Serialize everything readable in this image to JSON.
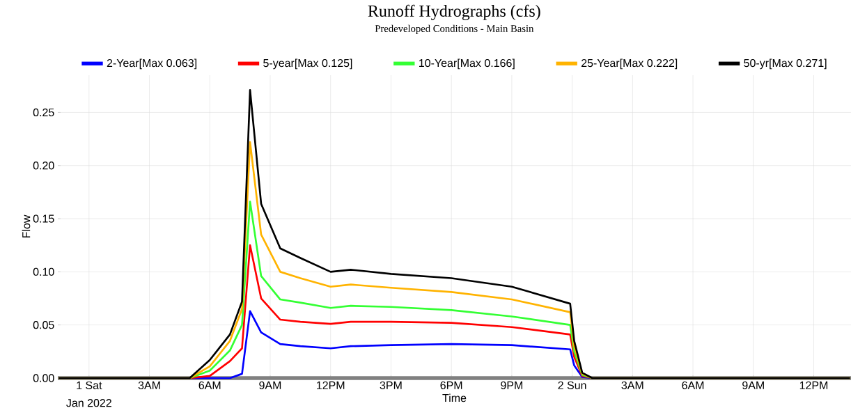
{
  "chart_data": {
    "type": "line",
    "title": "Runoff Hydrographs (cfs)",
    "subtitle": "Predeveloped Conditions - Main Basin",
    "xlabel": "Time",
    "ylabel": "Flow",
    "annotations": [
      "Jan 2022"
    ],
    "x": [
      "2021-12-31T22:30",
      "2022-01-01T05:00",
      "2022-01-01T06:00",
      "2022-01-01T07:00",
      "2022-01-01T07:36",
      "2022-01-01T08:00",
      "2022-01-01T08:33",
      "2022-01-01T09:30",
      "2022-01-01T10:30",
      "2022-01-01T12:00",
      "2022-01-01T13:00",
      "2022-01-01T15:00",
      "2022-01-01T18:00",
      "2022-01-01T21:00",
      "2022-01-01T23:54",
      "2022-01-02T00:06",
      "2022-01-02T00:30",
      "2022-01-02T01:00",
      "2022-01-02T13:48"
    ],
    "series": [
      {
        "name": "2-Year[Max 0.063]",
        "color": "#0000ff",
        "values": [
          0,
          0,
          0,
          0,
          0.004,
          0.063,
          0.043,
          0.032,
          0.03,
          0.028,
          0.03,
          0.031,
          0.032,
          0.031,
          0.027,
          0.012,
          0.001,
          0,
          0
        ]
      },
      {
        "name": "5-year[Max 0.125]",
        "color": "#ff0000",
        "values": [
          0,
          0,
          0.002,
          0.016,
          0.028,
          0.125,
          0.075,
          0.055,
          0.053,
          0.051,
          0.053,
          0.053,
          0.052,
          0.048,
          0.041,
          0.02,
          0.002,
          0,
          0
        ]
      },
      {
        "name": "10-Year[Max 0.166]",
        "color": "#33ff33",
        "values": [
          0,
          0,
          0.007,
          0.026,
          0.05,
          0.166,
          0.096,
          0.074,
          0.071,
          0.066,
          0.068,
          0.067,
          0.064,
          0.058,
          0.05,
          0.025,
          0.003,
          0,
          0
        ]
      },
      {
        "name": "25-Year[Max 0.222]",
        "color": "#ffb300",
        "values": [
          0,
          0,
          0.011,
          0.035,
          0.065,
          0.222,
          0.135,
          0.1,
          0.094,
          0.086,
          0.088,
          0.085,
          0.081,
          0.074,
          0.062,
          0.03,
          0.004,
          0,
          0
        ]
      },
      {
        "name": "50-yr[Max 0.271]",
        "color": "#000000",
        "values": [
          0,
          0,
          0.017,
          0.041,
          0.072,
          0.271,
          0.164,
          0.122,
          0.113,
          0.1,
          0.102,
          0.098,
          0.094,
          0.086,
          0.07,
          0.035,
          0.005,
          0,
          0
        ]
      }
    ],
    "xlim": [
      "2021-12-31T22:27",
      "2022-01-02T13:51"
    ],
    "ylim": [
      0,
      0.285
    ],
    "xticks": [
      {
        "value": "2022-01-01T00:00",
        "label": "1 Sat"
      },
      {
        "value": "2022-01-01T03:00",
        "label": "3AM"
      },
      {
        "value": "2022-01-01T06:00",
        "label": "6AM"
      },
      {
        "value": "2022-01-01T09:00",
        "label": "9AM"
      },
      {
        "value": "2022-01-01T12:00",
        "label": "12PM"
      },
      {
        "value": "2022-01-01T15:00",
        "label": "3PM"
      },
      {
        "value": "2022-01-01T18:00",
        "label": "6PM"
      },
      {
        "value": "2022-01-01T21:00",
        "label": "9PM"
      },
      {
        "value": "2022-01-02T00:00",
        "label": "2 Sun"
      },
      {
        "value": "2022-01-02T03:00",
        "label": "3AM"
      },
      {
        "value": "2022-01-02T06:00",
        "label": "6AM"
      },
      {
        "value": "2022-01-02T09:00",
        "label": "9AM"
      },
      {
        "value": "2022-01-02T12:00",
        "label": "12PM"
      }
    ],
    "yticks": [
      {
        "value": 0,
        "label": "0.00"
      },
      {
        "value": 0.05,
        "label": "0.05"
      },
      {
        "value": 0.1,
        "label": "0.10"
      },
      {
        "value": 0.15,
        "label": "0.15"
      },
      {
        "value": 0.2,
        "label": "0.20"
      },
      {
        "value": 0.25,
        "label": "0.25"
      }
    ],
    "grid": true,
    "legend": "top",
    "marker": "none",
    "line_style": "solid"
  }
}
